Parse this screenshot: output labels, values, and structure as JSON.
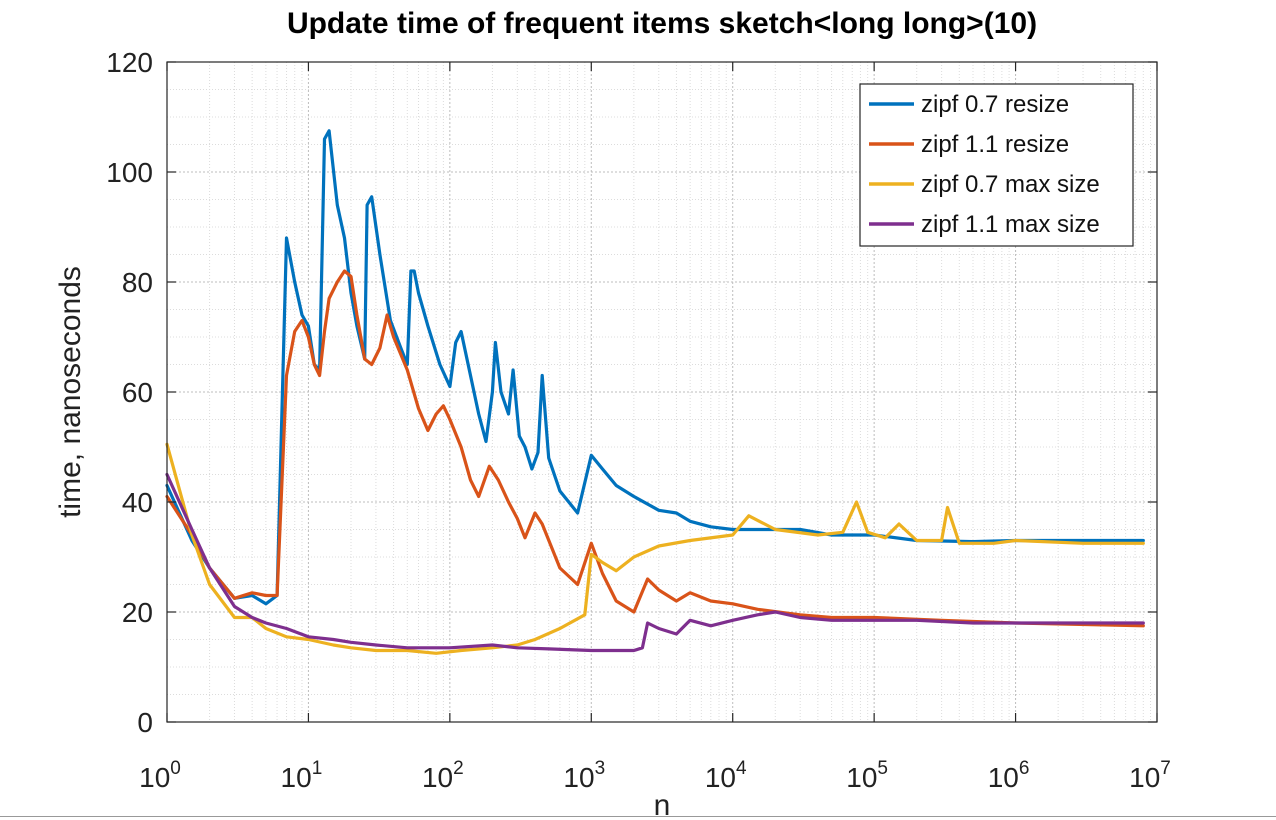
{
  "chart_data": {
    "type": "line",
    "title": "Update time of frequent items sketch<long long>(10)",
    "xlabel": "n",
    "ylabel": "time, nanoseconds",
    "xscale": "log",
    "xlim": [
      1,
      10000000
    ],
    "ylim": [
      0,
      120
    ],
    "x_ticks": [
      {
        "base": "10",
        "exp": "0"
      },
      {
        "base": "10",
        "exp": "1"
      },
      {
        "base": "10",
        "exp": "2"
      },
      {
        "base": "10",
        "exp": "3"
      },
      {
        "base": "10",
        "exp": "4"
      },
      {
        "base": "10",
        "exp": "5"
      },
      {
        "base": "10",
        "exp": "6"
      },
      {
        "base": "10",
        "exp": "7"
      }
    ],
    "y_ticks": [
      "0",
      "20",
      "40",
      "60",
      "80",
      "100",
      "120"
    ],
    "grid": true,
    "minor_grid": true,
    "legend_position": "top-right",
    "series": [
      {
        "name": "zipf 0.7 resize",
        "color": "#0072BD",
        "points": [
          [
            1,
            43
          ],
          [
            1.5,
            33
          ],
          [
            2,
            28
          ],
          [
            3,
            22.5
          ],
          [
            4,
            23
          ],
          [
            5,
            21.5
          ],
          [
            6,
            23
          ],
          [
            7,
            88
          ],
          [
            8,
            80
          ],
          [
            9,
            74
          ],
          [
            10,
            72
          ],
          [
            11,
            65
          ],
          [
            12,
            64
          ],
          [
            13,
            106
          ],
          [
            14,
            107.5
          ],
          [
            16,
            94
          ],
          [
            18,
            88
          ],
          [
            20,
            78
          ],
          [
            22,
            72
          ],
          [
            25,
            66
          ],
          [
            26,
            94
          ],
          [
            28,
            95.5
          ],
          [
            32,
            85
          ],
          [
            38,
            73
          ],
          [
            45,
            68
          ],
          [
            50,
            65
          ],
          [
            53,
            82
          ],
          [
            56,
            82
          ],
          [
            60,
            78
          ],
          [
            70,
            72
          ],
          [
            85,
            65
          ],
          [
            100,
            61
          ],
          [
            110,
            69
          ],
          [
            120,
            71
          ],
          [
            140,
            63
          ],
          [
            160,
            56
          ],
          [
            180,
            51
          ],
          [
            200,
            60
          ],
          [
            210,
            69
          ],
          [
            230,
            60
          ],
          [
            260,
            56
          ],
          [
            280,
            64
          ],
          [
            310,
            52
          ],
          [
            340,
            50
          ],
          [
            380,
            46
          ],
          [
            420,
            49
          ],
          [
            450,
            63
          ],
          [
            500,
            48
          ],
          [
            600,
            42
          ],
          [
            800,
            38
          ],
          [
            1000,
            48.5
          ],
          [
            1200,
            46
          ],
          [
            1500,
            43
          ],
          [
            2000,
            41
          ],
          [
            3000,
            38.5
          ],
          [
            4000,
            38
          ],
          [
            5000,
            36.5
          ],
          [
            7000,
            35.5
          ],
          [
            10000,
            35
          ],
          [
            20000,
            35
          ],
          [
            30000,
            35
          ],
          [
            50000,
            34
          ],
          [
            100000,
            34
          ],
          [
            200000,
            33
          ],
          [
            500000,
            32.8
          ],
          [
            1000000,
            33
          ],
          [
            3000000,
            33
          ],
          [
            8000000,
            33
          ]
        ]
      },
      {
        "name": "zipf 1.1 resize",
        "color": "#D95319",
        "points": [
          [
            1,
            41
          ],
          [
            1.5,
            34
          ],
          [
            2,
            28
          ],
          [
            3,
            22.5
          ],
          [
            4,
            23.5
          ],
          [
            5,
            23
          ],
          [
            6,
            23
          ],
          [
            7,
            63
          ],
          [
            8,
            71
          ],
          [
            9,
            73
          ],
          [
            10,
            70
          ],
          [
            11,
            65
          ],
          [
            12,
            63
          ],
          [
            13,
            71
          ],
          [
            14,
            77
          ],
          [
            16,
            80
          ],
          [
            18,
            82
          ],
          [
            20,
            81
          ],
          [
            22,
            74
          ],
          [
            25,
            66
          ],
          [
            28,
            65
          ],
          [
            32,
            68
          ],
          [
            36,
            74
          ],
          [
            40,
            70
          ],
          [
            50,
            64
          ],
          [
            60,
            57
          ],
          [
            70,
            53
          ],
          [
            80,
            56
          ],
          [
            90,
            57.5
          ],
          [
            100,
            55
          ],
          [
            120,
            50
          ],
          [
            140,
            44
          ],
          [
            160,
            41
          ],
          [
            190,
            46.5
          ],
          [
            220,
            44
          ],
          [
            260,
            40
          ],
          [
            300,
            37
          ],
          [
            340,
            33.5
          ],
          [
            400,
            38
          ],
          [
            450,
            36
          ],
          [
            600,
            28
          ],
          [
            800,
            25
          ],
          [
            1000,
            32.5
          ],
          [
            1200,
            27
          ],
          [
            1500,
            22
          ],
          [
            2000,
            20
          ],
          [
            2500,
            26
          ],
          [
            3000,
            24
          ],
          [
            4000,
            22
          ],
          [
            5000,
            23.5
          ],
          [
            7000,
            22
          ],
          [
            10000,
            21.5
          ],
          [
            15000,
            20.5
          ],
          [
            30000,
            19.5
          ],
          [
            50000,
            19
          ],
          [
            100000,
            19
          ],
          [
            300000,
            18.5
          ],
          [
            1000000,
            18
          ],
          [
            8000000,
            17.5
          ]
        ]
      },
      {
        "name": "zipf 0.7 max size",
        "color": "#EDB120",
        "points": [
          [
            1,
            50.5
          ],
          [
            1.5,
            34
          ],
          [
            2,
            25
          ],
          [
            3,
            19
          ],
          [
            4,
            19
          ],
          [
            5,
            17
          ],
          [
            7,
            15.5
          ],
          [
            10,
            15
          ],
          [
            15,
            14
          ],
          [
            20,
            13.5
          ],
          [
            30,
            13
          ],
          [
            50,
            13
          ],
          [
            80,
            12.5
          ],
          [
            120,
            13
          ],
          [
            200,
            13.5
          ],
          [
            300,
            14
          ],
          [
            400,
            15
          ],
          [
            600,
            17
          ],
          [
            900,
            19.5
          ],
          [
            1000,
            30.5
          ],
          [
            1200,
            29
          ],
          [
            1500,
            27.5
          ],
          [
            2000,
            30
          ],
          [
            3000,
            32
          ],
          [
            5000,
            33
          ],
          [
            10000,
            34
          ],
          [
            13000,
            37.5
          ],
          [
            20000,
            35
          ],
          [
            40000,
            34
          ],
          [
            60000,
            34.5
          ],
          [
            75000,
            40
          ],
          [
            90000,
            34.5
          ],
          [
            120000,
            33.5
          ],
          [
            150000,
            36
          ],
          [
            200000,
            33
          ],
          [
            300000,
            33
          ],
          [
            330000,
            39
          ],
          [
            400000,
            32.5
          ],
          [
            700000,
            32.5
          ],
          [
            1000000,
            33
          ],
          [
            3000000,
            32.5
          ],
          [
            8000000,
            32.5
          ]
        ]
      },
      {
        "name": "zipf 1.1 max size",
        "color": "#7E2F8E",
        "points": [
          [
            1,
            45
          ],
          [
            1.5,
            35
          ],
          [
            2,
            28
          ],
          [
            3,
            21
          ],
          [
            4,
            19
          ],
          [
            5,
            18
          ],
          [
            7,
            17
          ],
          [
            10,
            15.5
          ],
          [
            15,
            15
          ],
          [
            20,
            14.5
          ],
          [
            30,
            14
          ],
          [
            50,
            13.5
          ],
          [
            100,
            13.5
          ],
          [
            200,
            14
          ],
          [
            300,
            13.5
          ],
          [
            500,
            13.3
          ],
          [
            1000,
            13
          ],
          [
            2000,
            13
          ],
          [
            2300,
            13.5
          ],
          [
            2500,
            18
          ],
          [
            3000,
            17
          ],
          [
            4000,
            16
          ],
          [
            5000,
            18.5
          ],
          [
            7000,
            17.5
          ],
          [
            10000,
            18.5
          ],
          [
            15000,
            19.5
          ],
          [
            20000,
            20
          ],
          [
            30000,
            19
          ],
          [
            50000,
            18.5
          ],
          [
            100000,
            18.5
          ],
          [
            200000,
            18.5
          ],
          [
            500000,
            18
          ],
          [
            1000000,
            18
          ],
          [
            3000000,
            18
          ],
          [
            8000000,
            18
          ]
        ]
      }
    ]
  }
}
